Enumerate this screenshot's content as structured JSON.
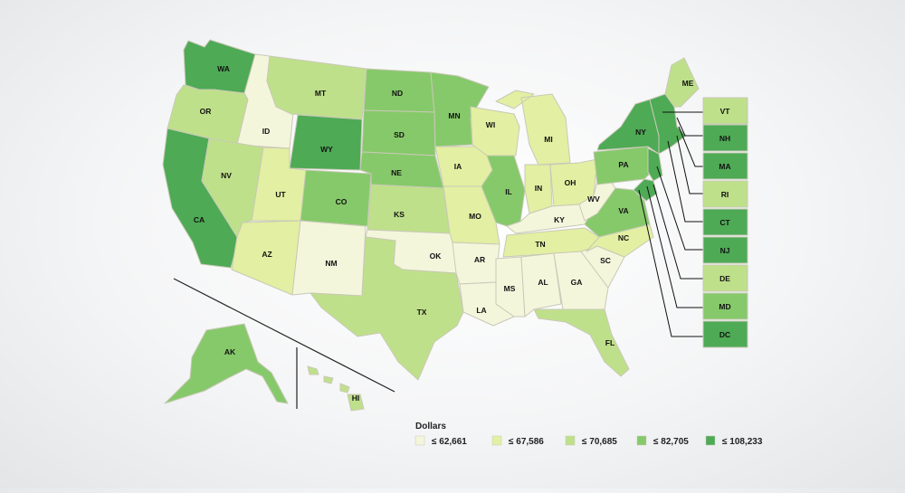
{
  "colors": {
    "c1": "#f4f6dc",
    "c2": "#e3efa2",
    "c3": "#bfe08a",
    "c4": "#86c96a",
    "c5": "#4eaa55"
  },
  "legend": {
    "title": "Dollars",
    "items": [
      {
        "label": "≤ 62,661",
        "color": "#f4f6dc"
      },
      {
        "label": "≤ 67,586",
        "color": "#e3efa2"
      },
      {
        "label": "≤ 70,685",
        "color": "#bfe08a"
      },
      {
        "label": "≤ 82,705",
        "color": "#86c96a"
      },
      {
        "label": "≤ 108,233",
        "color": "#4eaa55"
      }
    ]
  },
  "states": {
    "WA": {
      "label": "WA",
      "cls": 5
    },
    "OR": {
      "label": "OR",
      "cls": 3
    },
    "CA": {
      "label": "CA",
      "cls": 5
    },
    "ID": {
      "label": "ID",
      "cls": 1
    },
    "NV": {
      "label": "NV",
      "cls": 3
    },
    "MT": {
      "label": "MT",
      "cls": 3
    },
    "WY": {
      "label": "WY",
      "cls": 5
    },
    "UT": {
      "label": "UT",
      "cls": 2
    },
    "AZ": {
      "label": "AZ",
      "cls": 2
    },
    "CO": {
      "label": "CO",
      "cls": 4
    },
    "NM": {
      "label": "NM",
      "cls": 1
    },
    "ND": {
      "label": "ND",
      "cls": 4
    },
    "SD": {
      "label": "SD",
      "cls": 4
    },
    "NE": {
      "label": "NE",
      "cls": 4
    },
    "KS": {
      "label": "KS",
      "cls": 3
    },
    "OK": {
      "label": "OK",
      "cls": 1
    },
    "TX": {
      "label": "TX",
      "cls": 3
    },
    "MN": {
      "label": "MN",
      "cls": 4
    },
    "IA": {
      "label": "IA",
      "cls": 2
    },
    "MO": {
      "label": "MO",
      "cls": 2
    },
    "AR": {
      "label": "AR",
      "cls": 1
    },
    "LA": {
      "label": "LA",
      "cls": 1
    },
    "WI": {
      "label": "WI",
      "cls": 2
    },
    "IL": {
      "label": "IL",
      "cls": 4
    },
    "MI": {
      "label": "MI",
      "cls": 2
    },
    "IN": {
      "label": "IN",
      "cls": 2
    },
    "OH": {
      "label": "OH",
      "cls": 2
    },
    "KY": {
      "label": "KY",
      "cls": 1
    },
    "TN": {
      "label": "TN",
      "cls": 2
    },
    "MS": {
      "label": "MS",
      "cls": 1
    },
    "AL": {
      "label": "AL",
      "cls": 1
    },
    "GA": {
      "label": "GA",
      "cls": 1
    },
    "FL": {
      "label": "FL",
      "cls": 3
    },
    "SC": {
      "label": "SC",
      "cls": 1
    },
    "NC": {
      "label": "NC",
      "cls": 2
    },
    "VA": {
      "label": "VA",
      "cls": 4
    },
    "WV": {
      "label": "WV",
      "cls": 1
    },
    "PA": {
      "label": "PA",
      "cls": 4
    },
    "NY": {
      "label": "NY",
      "cls": 5
    },
    "ME": {
      "label": "ME",
      "cls": 3
    },
    "AK": {
      "label": "AK",
      "cls": 4
    },
    "HI": {
      "label": "HI",
      "cls": 3
    },
    "NE_REGION": {
      "label": "",
      "cls": 5
    }
  },
  "boxes": [
    {
      "code": "VT",
      "label": "VT",
      "cls": 3
    },
    {
      "code": "NH",
      "label": "NH",
      "cls": 5
    },
    {
      "code": "MA",
      "label": "MA",
      "cls": 5
    },
    {
      "code": "RI",
      "label": "RI",
      "cls": 3
    },
    {
      "code": "CT",
      "label": "CT",
      "cls": 5
    },
    {
      "code": "NJ",
      "label": "NJ",
      "cls": 5
    },
    {
      "code": "DE",
      "label": "DE",
      "cls": 3
    },
    {
      "code": "MD",
      "label": "MD",
      "cls": 4
    },
    {
      "code": "DC",
      "label": "DC",
      "cls": 5
    }
  ]
}
